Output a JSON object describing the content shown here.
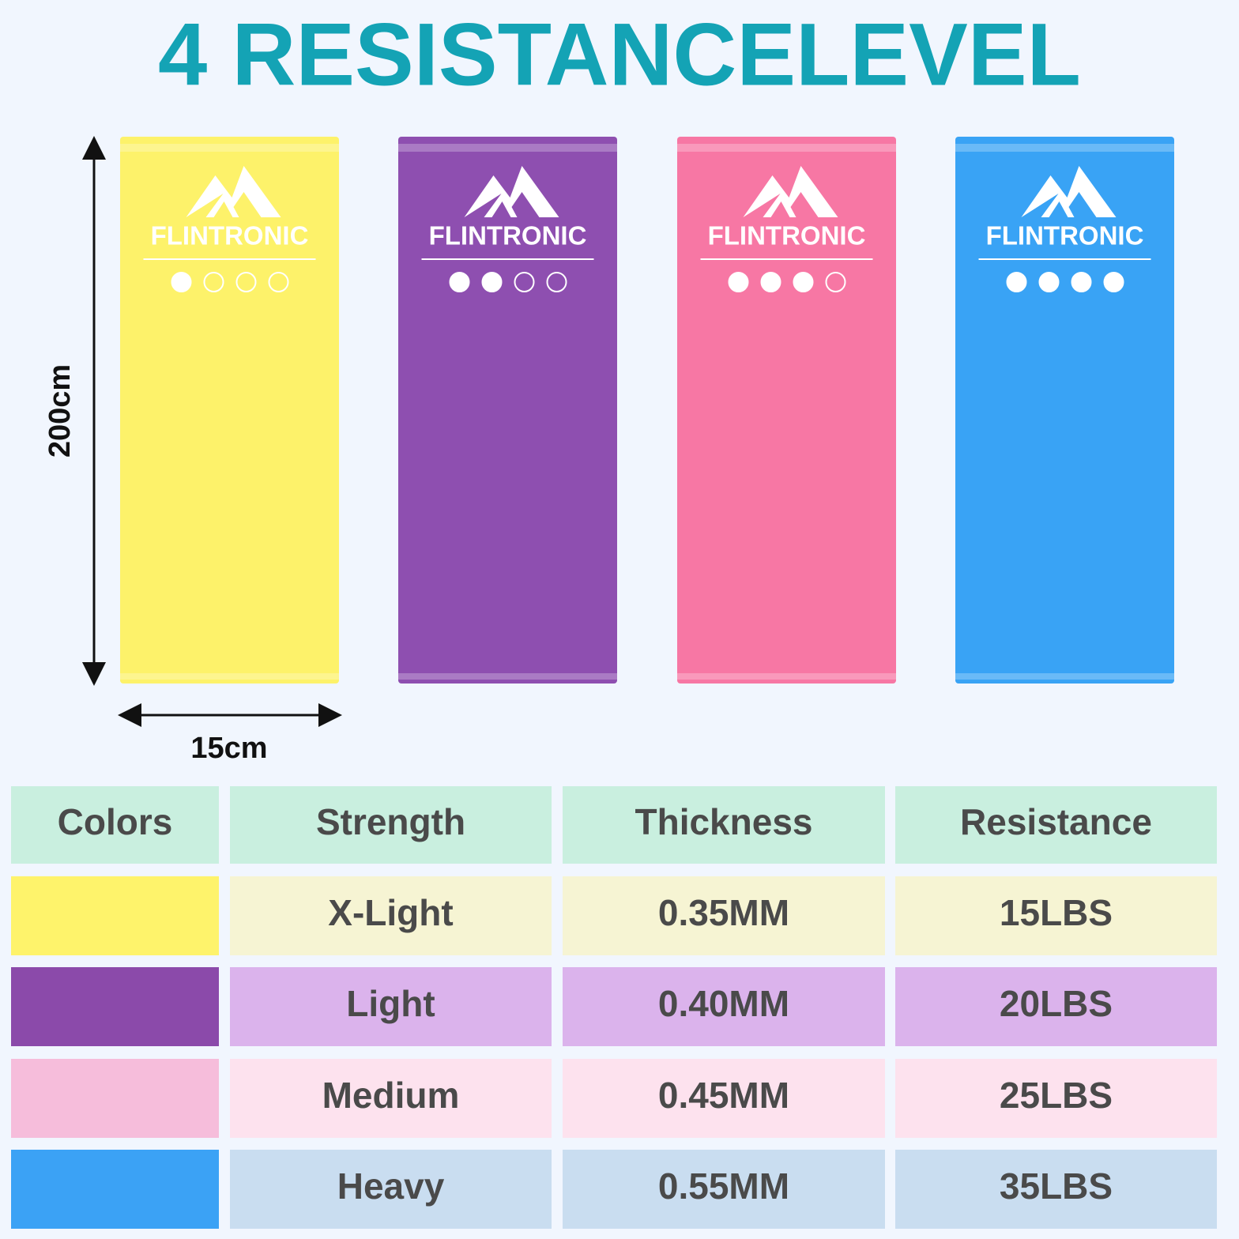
{
  "header": {
    "title": "4 RESISTANCELEVEL"
  },
  "dimensions": {
    "height": "200cm",
    "width": "15cm"
  },
  "bands": [
    {
      "brand": "FLINTRONIC",
      "color": "#fdf26a",
      "filled": 1,
      "total": 4
    },
    {
      "brand": "FLINTRONIC",
      "color": "#8e4fb0",
      "filled": 2,
      "total": 4
    },
    {
      "brand": "FLINTRONIC",
      "color": "#f777a4",
      "filled": 3,
      "total": 4
    },
    {
      "brand": "FLINTRONIC",
      "color": "#39a3f5",
      "filled": 4,
      "total": 4
    }
  ],
  "table": {
    "columns": [
      "Colors",
      "Strength",
      "Thickness",
      "Resistance"
    ],
    "header_color": "#c9efdf",
    "rows": [
      {
        "swatch": "#fef36b",
        "tint": "#f6f4d3",
        "cells": [
          "X-Light",
          "0.35MM",
          "15LBS"
        ]
      },
      {
        "swatch": "#8b4aaa",
        "tint": "#dbb3ec",
        "cells": [
          "Light",
          "0.40MM",
          "20LBS"
        ]
      },
      {
        "swatch": "#f6bddb",
        "tint": "#fde2ee",
        "cells": [
          "Medium",
          "0.45MM",
          "25LBS"
        ]
      },
      {
        "swatch": "#3ba2f5",
        "tint": "#c9ddf0",
        "cells": [
          "Heavy",
          "0.55MM",
          "35LBS"
        ]
      }
    ]
  }
}
